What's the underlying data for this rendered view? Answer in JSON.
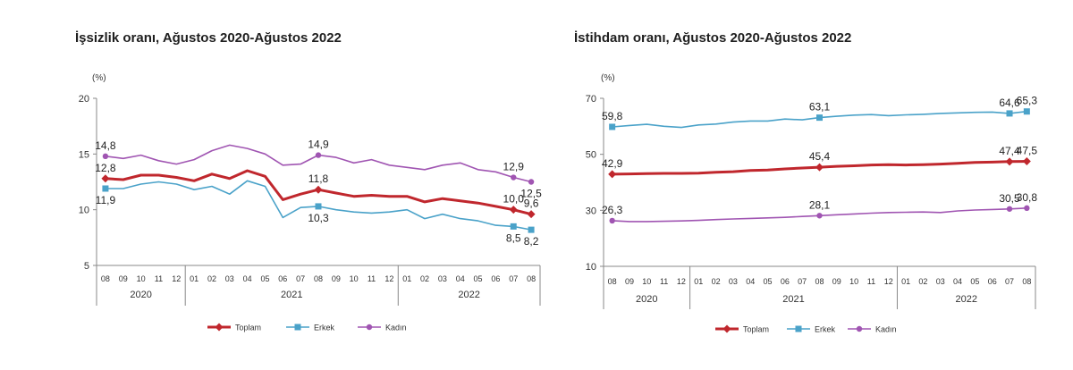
{
  "chart_data": [
    {
      "type": "line",
      "title": "İşsizlik oranı, Ağustos 2020-Ağustos 2022",
      "unit_label": "(%)",
      "ylim": [
        5,
        20
      ],
      "yticks": [
        "20",
        "15",
        "10",
        "5"
      ],
      "months": [
        "08",
        "09",
        "10",
        "11",
        "12",
        "01",
        "02",
        "03",
        "04",
        "05",
        "06",
        "07",
        "08",
        "09",
        "10",
        "11",
        "12",
        "01",
        "02",
        "03",
        "04",
        "05",
        "06",
        "07",
        "08"
      ],
      "years": [
        {
          "label": "2020",
          "start": 0,
          "end": 4
        },
        {
          "label": "2021",
          "start": 5,
          "end": 16
        },
        {
          "label": "2022",
          "start": 17,
          "end": 24
        }
      ],
      "series": [
        {
          "name": "Toplam",
          "color": "#c0272d",
          "marker": "diamond",
          "values": [
            12.8,
            12.7,
            13.1,
            13.1,
            12.9,
            12.6,
            13.2,
            12.8,
            13.5,
            13.0,
            10.9,
            11.4,
            11.8,
            11.5,
            11.2,
            11.3,
            11.2,
            11.2,
            10.7,
            11.0,
            10.8,
            10.6,
            10.3,
            10.0,
            9.6
          ],
          "labels": [
            {
              "i": 0,
              "text": "12,8",
              "pos": "above"
            },
            {
              "i": 12,
              "text": "11,8",
              "pos": "above"
            },
            {
              "i": 23,
              "text": "10,0",
              "pos": "above"
            },
            {
              "i": 24,
              "text": "9,6",
              "pos": "above"
            }
          ]
        },
        {
          "name": "Erkek",
          "color": "#4aa2c9",
          "marker": "square",
          "values": [
            11.9,
            11.9,
            12.3,
            12.5,
            12.3,
            11.8,
            12.1,
            11.4,
            12.6,
            12.1,
            9.3,
            10.2,
            10.3,
            10.0,
            9.8,
            9.7,
            9.8,
            10.0,
            9.2,
            9.6,
            9.2,
            9.0,
            8.6,
            8.5,
            8.2
          ],
          "labels": [
            {
              "i": 0,
              "text": "11,9",
              "pos": "below"
            },
            {
              "i": 12,
              "text": "10,3",
              "pos": "below"
            },
            {
              "i": 23,
              "text": "8,5",
              "pos": "below"
            },
            {
              "i": 24,
              "text": "8,2",
              "pos": "below"
            }
          ]
        },
        {
          "name": "Kadın",
          "color": "#a055b2",
          "marker": "circle",
          "values": [
            14.8,
            14.6,
            14.9,
            14.4,
            14.1,
            14.5,
            15.3,
            15.8,
            15.5,
            15.0,
            14.0,
            14.1,
            14.9,
            14.7,
            14.2,
            14.5,
            14.0,
            13.8,
            13.6,
            14.0,
            14.2,
            13.6,
            13.4,
            12.9,
            12.5
          ],
          "labels": [
            {
              "i": 0,
              "text": "14,8",
              "pos": "above"
            },
            {
              "i": 12,
              "text": "14,9",
              "pos": "above"
            },
            {
              "i": 23,
              "text": "12,9",
              "pos": "above"
            },
            {
              "i": 24,
              "text": "12,5",
              "pos": "below"
            }
          ]
        }
      ],
      "legend_position": "bottom"
    },
    {
      "type": "line",
      "title": "İstihdam oranı, Ağustos 2020-Ağustos 2022",
      "unit_label": "(%)",
      "ylim": [
        10,
        70
      ],
      "yticks": [
        "70",
        "50",
        "30",
        "10"
      ],
      "months": [
        "08",
        "09",
        "10",
        "11",
        "12",
        "01",
        "02",
        "03",
        "04",
        "05",
        "06",
        "07",
        "08",
        "09",
        "10",
        "11",
        "12",
        "01",
        "02",
        "03",
        "04",
        "05",
        "06",
        "07",
        "08"
      ],
      "years": [
        {
          "label": "2020",
          "start": 0,
          "end": 4
        },
        {
          "label": "2021",
          "start": 5,
          "end": 16
        },
        {
          "label": "2022",
          "start": 17,
          "end": 24
        }
      ],
      "series": [
        {
          "name": "Toplam",
          "color": "#c0272d",
          "marker": "diamond",
          "values": [
            42.9,
            43.0,
            43.1,
            43.2,
            43.2,
            43.3,
            43.6,
            43.8,
            44.2,
            44.4,
            44.8,
            45.1,
            45.4,
            45.7,
            45.9,
            46.2,
            46.3,
            46.2,
            46.3,
            46.5,
            46.8,
            47.1,
            47.2,
            47.4,
            47.5
          ],
          "labels": [
            {
              "i": 0,
              "text": "42,9",
              "pos": "above"
            },
            {
              "i": 12,
              "text": "45,4",
              "pos": "above"
            },
            {
              "i": 23,
              "text": "47,4",
              "pos": "above"
            },
            {
              "i": 24,
              "text": "47,5",
              "pos": "above"
            }
          ]
        },
        {
          "name": "Erkek",
          "color": "#4aa2c9",
          "marker": "square",
          "values": [
            59.8,
            60.3,
            60.7,
            60.0,
            59.6,
            60.5,
            60.8,
            61.5,
            61.9,
            61.9,
            62.6,
            62.3,
            63.1,
            63.6,
            64.0,
            64.2,
            63.8,
            64.1,
            64.3,
            64.6,
            64.8,
            65.0,
            65.1,
            64.6,
            65.3
          ],
          "labels": [
            {
              "i": 0,
              "text": "59,8",
              "pos": "above"
            },
            {
              "i": 12,
              "text": "63,1",
              "pos": "above"
            },
            {
              "i": 23,
              "text": "64,6",
              "pos": "above"
            },
            {
              "i": 24,
              "text": "65,3",
              "pos": "above"
            }
          ]
        },
        {
          "name": "Kadın",
          "color": "#a055b2",
          "marker": "circle",
          "values": [
            26.3,
            26.0,
            26.0,
            26.1,
            26.2,
            26.4,
            26.7,
            26.9,
            27.1,
            27.3,
            27.5,
            27.8,
            28.1,
            28.4,
            28.7,
            29.0,
            29.2,
            29.3,
            29.4,
            29.2,
            29.8,
            30.1,
            30.3,
            30.5,
            30.8
          ],
          "labels": [
            {
              "i": 0,
              "text": "26,3",
              "pos": "above"
            },
            {
              "i": 12,
              "text": "28,1",
              "pos": "above"
            },
            {
              "i": 23,
              "text": "30,5",
              "pos": "above"
            },
            {
              "i": 24,
              "text": "30,8",
              "pos": "above"
            }
          ]
        }
      ],
      "legend_position": "bottom"
    }
  ]
}
